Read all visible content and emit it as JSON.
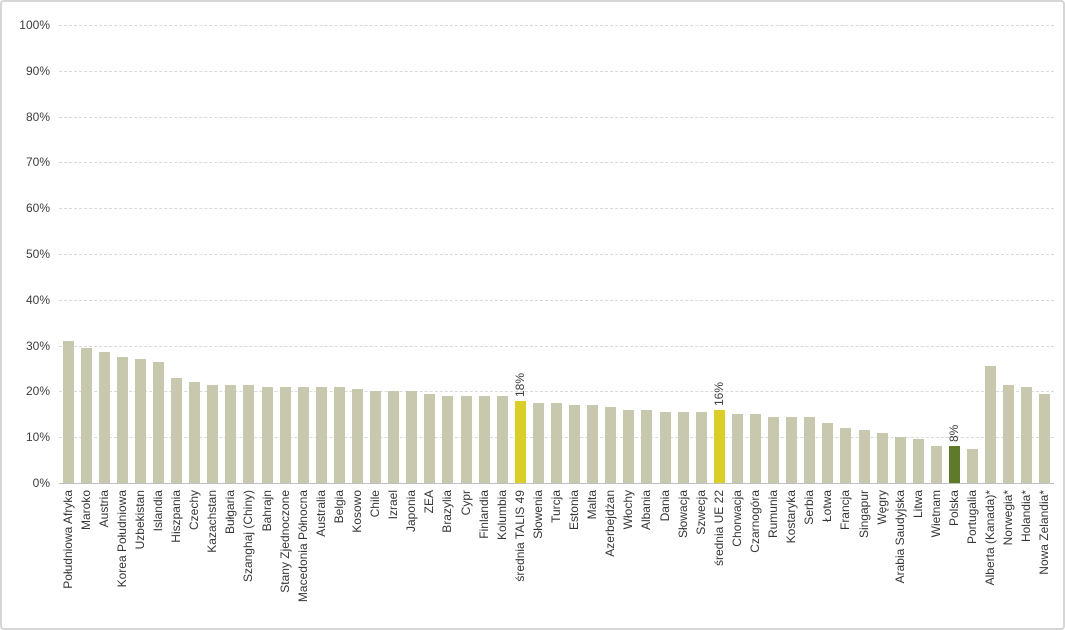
{
  "chart_data": {
    "type": "bar",
    "ylim": [
      0,
      100
    ],
    "ytick_step": 10,
    "ytick_labels": [
      "0%",
      "10%",
      "20%",
      "30%",
      "40%",
      "50%",
      "60%",
      "70%",
      "80%",
      "90%",
      "100%"
    ],
    "grid": true,
    "legend_position": "none",
    "colors": {
      "normal": "#c8c8af",
      "highlight": "#dbce29",
      "poland": "#5f7a28",
      "gridline": "#d9d9d9",
      "axis_line": "#bfbfbf",
      "axis_text": "#3d3d3d"
    },
    "bars": [
      {
        "label": "Południowa Afryka",
        "value": 31
      },
      {
        "label": "Maroko",
        "value": 29.5
      },
      {
        "label": "Austria",
        "value": 28.5
      },
      {
        "label": "Korea Południowa",
        "value": 27.5
      },
      {
        "label": "Uzbekistan",
        "value": 27
      },
      {
        "label": "Islandia",
        "value": 26.5
      },
      {
        "label": "Hiszpania",
        "value": 23
      },
      {
        "label": "Czechy",
        "value": 22
      },
      {
        "label": "Kazachstan",
        "value": 21.5
      },
      {
        "label": "Bułgaria",
        "value": 21.5
      },
      {
        "label": "Szanghaj (Chiny)",
        "value": 21.5
      },
      {
        "label": "Bahrajn",
        "value": 21
      },
      {
        "label": "Stany Zjednoczone",
        "value": 21
      },
      {
        "label": "Macedonia Północna",
        "value": 21
      },
      {
        "label": "Australia",
        "value": 21
      },
      {
        "label": "Belgia",
        "value": 21
      },
      {
        "label": "Kosowo",
        "value": 20.5
      },
      {
        "label": "Chile",
        "value": 20
      },
      {
        "label": "Izrael",
        "value": 20
      },
      {
        "label": "Japonia",
        "value": 20
      },
      {
        "label": "ZEA",
        "value": 19.5
      },
      {
        "label": "Brazylia",
        "value": 19
      },
      {
        "label": "Cypr",
        "value": 19
      },
      {
        "label": "Finlandia",
        "value": 19
      },
      {
        "label": "Kolumbia",
        "value": 19
      },
      {
        "label": "średnia TALIS 49",
        "value": 18,
        "color": "highlight",
        "data_label": "18%"
      },
      {
        "label": "Słowenia",
        "value": 17.5
      },
      {
        "label": "Turcja",
        "value": 17.5
      },
      {
        "label": "Estonia",
        "value": 17
      },
      {
        "label": "Malta",
        "value": 17
      },
      {
        "label": "Azerbejdżan",
        "value": 16.5
      },
      {
        "label": "Włochy",
        "value": 16
      },
      {
        "label": "Albania",
        "value": 16
      },
      {
        "label": "Dania",
        "value": 15.5
      },
      {
        "label": "Słowacja",
        "value": 15.5
      },
      {
        "label": "Szwecja",
        "value": 15.5
      },
      {
        "label": "średnia UE 22",
        "value": 16,
        "color": "highlight",
        "data_label": "16%"
      },
      {
        "label": "Chorwacja",
        "value": 15
      },
      {
        "label": "Czarnogóra",
        "value": 15
      },
      {
        "label": "Rumunia",
        "value": 14.5
      },
      {
        "label": "Kostaryka",
        "value": 14.5
      },
      {
        "label": "Serbia",
        "value": 14.5
      },
      {
        "label": "Łotwa",
        "value": 13
      },
      {
        "label": "Francja",
        "value": 12
      },
      {
        "label": "Singapur",
        "value": 11.5
      },
      {
        "label": "Węgry",
        "value": 11
      },
      {
        "label": "Arabia Saudyjska",
        "value": 10
      },
      {
        "label": "Litwa",
        "value": 9.5
      },
      {
        "label": "Wietnam",
        "value": 8
      },
      {
        "label": "Polska",
        "value": 8,
        "color": "poland",
        "data_label": "8%"
      },
      {
        "label": "Portugalia",
        "value": 7.5
      },
      {
        "label": "Alberta (Kanada)*",
        "value": 25.5
      },
      {
        "label": "Norwegia*",
        "value": 21.5
      },
      {
        "label": "Holandia*",
        "value": 21
      },
      {
        "label": "Nowa Zelandia*",
        "value": 19.5
      }
    ]
  }
}
